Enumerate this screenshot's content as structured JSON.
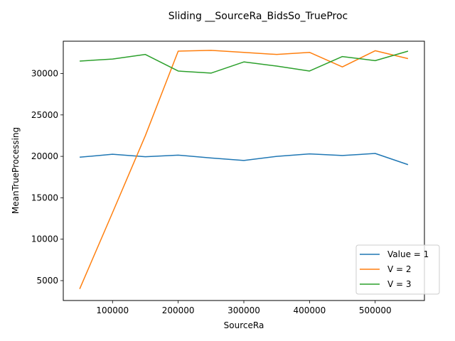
{
  "chart_data": {
    "type": "line",
    "title": "Sliding __SourceRa_BidsSo_TrueProc",
    "xlabel": "SourceRa",
    "ylabel": "MeanTrueProcessing",
    "xlim": [
      25000,
      575000
    ],
    "ylim": [
      2600,
      33900
    ],
    "xticks": [
      100000,
      200000,
      300000,
      400000,
      500000
    ],
    "yticks": [
      5000,
      10000,
      15000,
      20000,
      25000,
      30000
    ],
    "x": [
      50000,
      100000,
      150000,
      200000,
      250000,
      300000,
      350000,
      400000,
      450000,
      500000,
      550000
    ],
    "series": [
      {
        "name": "Value = 1",
        "color": "#1f77b4",
        "values": [
          19900,
          20250,
          19950,
          20150,
          19800,
          19500,
          20000,
          20300,
          20100,
          20350,
          19000
        ]
      },
      {
        "name": "V = 2",
        "color": "#ff7f0e",
        "values": [
          4000,
          13200,
          22500,
          32700,
          32800,
          32550,
          32300,
          32550,
          30800,
          32750,
          31800
        ]
      },
      {
        "name": "V = 3",
        "color": "#2ca02c",
        "values": [
          31500,
          31750,
          32300,
          30300,
          30050,
          31400,
          30900,
          30300,
          32050,
          31550,
          32700
        ]
      }
    ],
    "legend_position": "lower-right",
    "grid": false
  }
}
